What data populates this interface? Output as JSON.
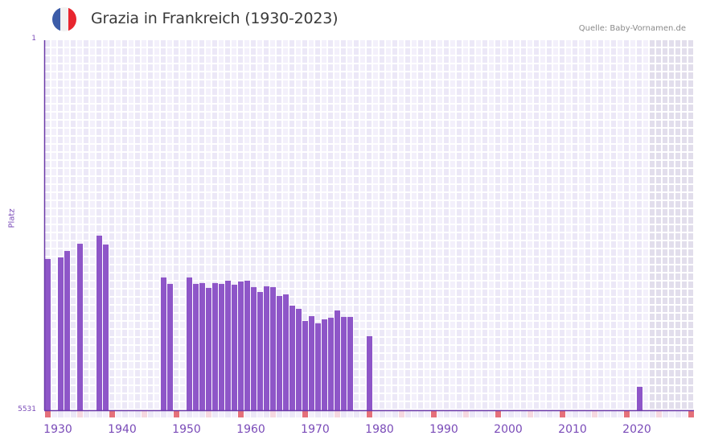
{
  "header": {
    "title": "Grazia in Frankreich (1930-2023)",
    "flag_icon": "france-flag-icon",
    "source": "Quelle: Baby-Vornamen.de"
  },
  "axes": {
    "y_label": "Platz",
    "y_top_tick": "1",
    "y_bottom_tick": "5531",
    "x_ticks": [
      "1930",
      "1940",
      "1950",
      "1960",
      "1970",
      "1980",
      "1990",
      "2000",
      "2010",
      "2020"
    ]
  },
  "colors": {
    "bar": "#8e56c8",
    "axis": "#6b3aa8",
    "decade_marker": "#e5707a",
    "half_decade_marker": "#f6d8e0",
    "cell_a": "#ece8f7",
    "cell_b": "#f3f0fb",
    "future_cell": "#e2deec",
    "flag_blue": "#3c5ca8",
    "flag_white": "#f2f2f2",
    "flag_red": "#e8262f"
  },
  "chart_data": {
    "type": "bar",
    "title": "Grazia in Frankreich (1930-2023)",
    "xlabel": "",
    "ylabel": "Platz",
    "ylim": [
      5531,
      1
    ],
    "y_inverted": true,
    "x_range": [
      1930,
      2030
    ],
    "grid": true,
    "shaded_future_from": 2024,
    "x": [
      1930,
      1932,
      1933,
      1935,
      1938,
      1939,
      1948,
      1949,
      1952,
      1953,
      1954,
      1955,
      1956,
      1957,
      1958,
      1959,
      1960,
      1961,
      1962,
      1963,
      1964,
      1965,
      1966,
      1967,
      1968,
      1969,
      1970,
      1971,
      1972,
      1973,
      1974,
      1975,
      1976,
      1977,
      1980,
      2022
    ],
    "values": [
      3271,
      3247,
      3151,
      3043,
      2922,
      3055,
      3547,
      3643,
      3547,
      3643,
      3631,
      3703,
      3631,
      3643,
      3595,
      3655,
      3607,
      3595,
      3691,
      3764,
      3679,
      3691,
      3824,
      3800,
      3968,
      4016,
      4197,
      4125,
      4233,
      4173,
      4149,
      4040,
      4137,
      4137,
      4425,
      5182
    ],
    "source": "Quelle: Baby-Vornamen.de"
  }
}
